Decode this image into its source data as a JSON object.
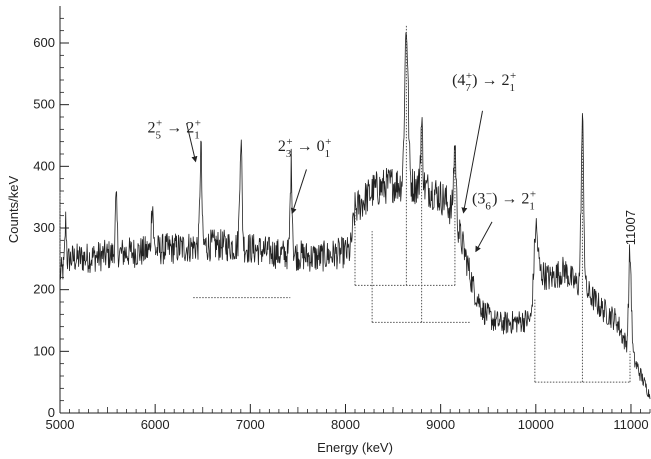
{
  "chart_data": {
    "type": "line",
    "xlabel": "Energy (keV)",
    "ylabel": "Counts/keV",
    "xlim": [
      5000,
      11200
    ],
    "ylim": [
      0,
      660
    ],
    "xticks": [
      "5000",
      "6000",
      "7000",
      "8000",
      "9000",
      "10000",
      "11000"
    ],
    "yticks": [
      "0",
      "100",
      "200",
      "300",
      "400",
      "500",
      "600"
    ],
    "grid": false,
    "baseline": [
      [
        5000,
        225
      ],
      [
        5100,
        250
      ],
      [
        5300,
        252
      ],
      [
        5500,
        256
      ],
      [
        5700,
        260
      ],
      [
        5900,
        262
      ],
      [
        6100,
        266
      ],
      [
        6300,
        268
      ],
      [
        6500,
        272
      ],
      [
        6700,
        272
      ],
      [
        6900,
        270
      ],
      [
        7100,
        264
      ],
      [
        7300,
        258
      ],
      [
        7500,
        256
      ],
      [
        7700,
        252
      ],
      [
        7900,
        258
      ],
      [
        8050,
        262
      ],
      [
        8100,
        330
      ],
      [
        8300,
        362
      ],
      [
        8500,
        372
      ],
      [
        8700,
        370
      ],
      [
        8900,
        362
      ],
      [
        9050,
        345
      ],
      [
        9150,
        318
      ],
      [
        9250,
        262
      ],
      [
        9350,
        200
      ],
      [
        9450,
        165
      ],
      [
        9550,
        150
      ],
      [
        9650,
        145
      ],
      [
        9800,
        148
      ],
      [
        9950,
        152
      ],
      [
        10000,
        260
      ],
      [
        10050,
        228
      ],
      [
        10150,
        218
      ],
      [
        10300,
        232
      ],
      [
        10400,
        212
      ],
      [
        10550,
        195
      ],
      [
        10700,
        168
      ],
      [
        10850,
        150
      ],
      [
        10950,
        110
      ],
      [
        11050,
        80
      ],
      [
        11200,
        28
      ]
    ],
    "peaks": [
      {
        "x": 5060,
        "y": 310,
        "w": 8
      },
      {
        "x": 5590,
        "y": 340,
        "w": 10
      },
      {
        "x": 5970,
        "y": 345,
        "w": 10
      },
      {
        "x": 6480,
        "y": 430,
        "w": 10
      },
      {
        "x": 6900,
        "y": 445,
        "w": 12
      },
      {
        "x": 7430,
        "y": 400,
        "w": 11
      },
      {
        "x": 8640,
        "y": 628,
        "w": 18
      },
      {
        "x": 8800,
        "y": 465,
        "w": 12
      },
      {
        "x": 9150,
        "y": 435,
        "w": 13
      },
      {
        "x": 10000,
        "y": 305,
        "w": 18
      },
      {
        "x": 10490,
        "y": 465,
        "w": 14
      },
      {
        "x": 10990,
        "y": 258,
        "w": 14
      }
    ],
    "gates": [
      {
        "x1": 6400,
        "x2": 7420,
        "y": 187,
        "style": "dotted"
      },
      {
        "x1": 8100,
        "x2": 9150,
        "y": 207,
        "style": "dotted"
      },
      {
        "x1": 8280,
        "x2": 9310,
        "y": 147,
        "style": "dotted"
      },
      {
        "x1": 9990,
        "x2": 10990,
        "y": 50,
        "style": "dotted"
      }
    ],
    "markers": [
      {
        "x": 5000,
        "y1": 225,
        "y2": 360
      },
      {
        "x": 8100,
        "y1": 207,
        "y2": 333
      },
      {
        "x": 8280,
        "y1": 147,
        "y2": 295
      },
      {
        "x": 8640,
        "y1": 207,
        "y2": 628
      },
      {
        "x": 8800,
        "y1": 147,
        "y2": 465
      },
      {
        "x": 9150,
        "y1": 207,
        "y2": 435
      },
      {
        "x": 9990,
        "y1": 50,
        "y2": 185
      },
      {
        "x": 10490,
        "y1": 50,
        "y2": 465
      },
      {
        "x": 10990,
        "y1": 50,
        "y2": 100
      }
    ],
    "annotations": [
      {
        "id": "ann1",
        "mathml": "2<tspan baseline-shift=\"sub\" font-size=\"11\">5</tspan><tspan baseline-shift=\"super\" font-size=\"11\" dx=\"-5\">+</tspan> → 2<tspan baseline-shift=\"sub\" font-size=\"11\">1</tspan><tspan baseline-shift=\"super\" font-size=\"11\" dx=\"-5\">+</tspan>",
        "tx": 5920,
        "ty": 455,
        "ax": 6330,
        "ay": 470,
        "bx": 6425,
        "by": 408
      },
      {
        "id": "ann2",
        "mathml": "2<tspan baseline-shift=\"sub\" font-size=\"11\">3</tspan><tspan baseline-shift=\"super\" font-size=\"11\" dx=\"-5\">+</tspan> → 0<tspan baseline-shift=\"sub\" font-size=\"11\">1</tspan><tspan baseline-shift=\"super\" font-size=\"11\" dx=\"-5\">+</tspan>",
        "tx": 7290,
        "ty": 425,
        "ax": 7590,
        "ay": 395,
        "bx": 7440,
        "by": 324
      },
      {
        "id": "ann3",
        "mathml": "(4<tspan baseline-shift=\"sub\" font-size=\"11\">7</tspan><tspan baseline-shift=\"super\" font-size=\"11\" dx=\"-5\">+</tspan>) → 2<tspan baseline-shift=\"sub\" font-size=\"11\">1</tspan><tspan baseline-shift=\"super\" font-size=\"11\" dx=\"-5\">+</tspan>",
        "tx": 9120,
        "ty": 532,
        "ax": 9440,
        "ay": 490,
        "bx": 9240,
        "by": 325
      },
      {
        "id": "ann4",
        "mathml": "(3<tspan baseline-shift=\"sub\" font-size=\"11\">6</tspan><tspan baseline-shift=\"super\" font-size=\"11\" dx=\"-5\">−</tspan>) → 2<tspan baseline-shift=\"sub\" font-size=\"11\">1</tspan><tspan baseline-shift=\"super\" font-size=\"11\" dx=\"-5\">+</tspan>",
        "tx": 9330,
        "ty": 340,
        "ax": 9540,
        "ay": 310,
        "bx": 9370,
        "by": 262
      }
    ],
    "label_11007": {
      "text": "11007",
      "x": 11000,
      "y": 272
    }
  }
}
